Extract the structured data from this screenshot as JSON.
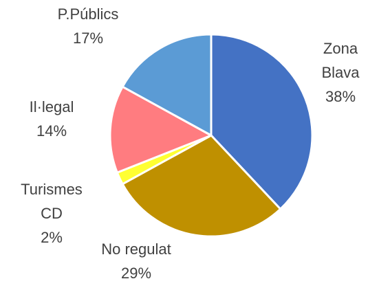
{
  "chart_data": {
    "type": "pie",
    "title": "",
    "start_angle_deg": 0,
    "direction": "clockwise",
    "slices": [
      {
        "name": "Zona Blava",
        "label_lines": [
          "Zona",
          "Blava"
        ],
        "value": 38,
        "value_label": "38%",
        "color": "#4472C4"
      },
      {
        "name": "No regulat",
        "label_lines": [
          "No regulat"
        ],
        "value": 29,
        "value_label": "29%",
        "color": "#BF9000"
      },
      {
        "name": "Turismes CD",
        "label_lines": [
          "Turismes",
          "CD"
        ],
        "value": 2,
        "value_label": "2%",
        "color": "#FFFF33"
      },
      {
        "name": "Il·legal",
        "label_lines": [
          "Il·legal"
        ],
        "value": 14,
        "value_label": "14%",
        "color": "#FF7C80"
      },
      {
        "name": "P.Públics",
        "label_lines": [
          "P.Públics"
        ],
        "value": 17,
        "value_label": "17%",
        "color": "#5B9BD5"
      }
    ]
  }
}
